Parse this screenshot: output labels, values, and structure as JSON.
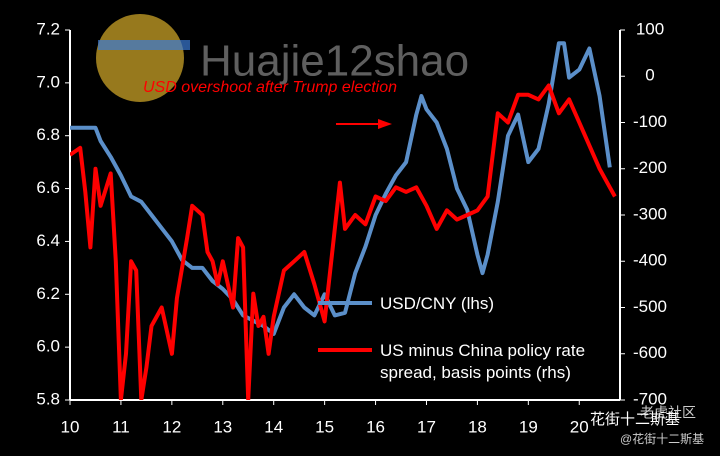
{
  "chart_data": {
    "type": "line",
    "annotation": "USD overshoot after Trump election",
    "watermarks": [
      "Huajie12shao",
      "老虎社区",
      "花街十二斯基",
      "@花街十二斯基"
    ],
    "xlim": [
      10,
      20.8
    ],
    "xticks": [
      10,
      11,
      12,
      13,
      14,
      15,
      16,
      17,
      18,
      19,
      20
    ],
    "ylim": [
      5.8,
      7.2
    ],
    "yticks": [
      5.8,
      {
        "value": 6,
        "label": "6.0"
      },
      6.2,
      6.4,
      6.6,
      6.8,
      {
        "value": 7,
        "label": "7.0"
      },
      7.2
    ],
    "y2lim": [
      -700,
      100
    ],
    "y2ticks": [
      -700,
      -600,
      -500,
      -400,
      -300,
      -200,
      -100,
      0,
      100
    ],
    "series": [
      {
        "name": "USD/CNY (lhs)",
        "color": "#5b8fc9",
        "x": [
          10,
          10.5,
          10.6,
          10.8,
          11,
          11.2,
          11.4,
          11.6,
          11.8,
          12,
          12.2,
          12.4,
          12.6,
          12.8,
          13,
          13.2,
          13.4,
          13.6,
          13.8,
          14,
          14.2,
          14.4,
          14.6,
          14.8,
          15,
          15.2,
          15.4,
          15.6,
          15.8,
          16,
          16.2,
          16.4,
          16.6,
          16.8,
          16.9,
          17,
          17.2,
          17.4,
          17.6,
          17.8,
          18,
          18.1,
          18.2,
          18.4,
          18.6,
          18.8,
          19,
          19.2,
          19.4,
          19.6,
          19.7,
          19.8,
          20,
          20.2,
          20.4,
          20.6
        ],
        "values": [
          6.83,
          6.83,
          6.78,
          6.72,
          6.65,
          6.57,
          6.55,
          6.5,
          6.45,
          6.4,
          6.33,
          6.3,
          6.3,
          6.25,
          6.22,
          6.18,
          6.12,
          6.1,
          6.08,
          6.05,
          6.15,
          6.2,
          6.15,
          6.12,
          6.2,
          6.12,
          6.13,
          6.28,
          6.38,
          6.5,
          6.58,
          6.65,
          6.7,
          6.88,
          6.95,
          6.9,
          6.85,
          6.75,
          6.6,
          6.52,
          6.35,
          6.28,
          6.35,
          6.55,
          6.8,
          6.88,
          6.7,
          6.75,
          6.92,
          7.15,
          7.15,
          7.02,
          7.05,
          7.13,
          6.95,
          6.68
        ]
      },
      {
        "name": "US minus China policy rate spread, basis points (rhs)",
        "color": "#ff0000",
        "axis": "y2",
        "x": [
          10,
          10.2,
          10.3,
          10.4,
          10.5,
          10.6,
          10.8,
          10.9,
          11,
          11.1,
          11.2,
          11.3,
          11.4,
          11.5,
          11.6,
          11.8,
          12,
          12.1,
          12.3,
          12.4,
          12.6,
          12.7,
          12.8,
          12.9,
          13,
          13.2,
          13.3,
          13.4,
          13.5,
          13.6,
          13.7,
          13.8,
          13.9,
          14,
          14.2,
          14.4,
          14.6,
          14.8,
          15,
          15.2,
          15.3,
          15.4,
          15.6,
          15.8,
          16,
          16.2,
          16.4,
          16.6,
          16.8,
          17,
          17.2,
          17.4,
          17.6,
          17.8,
          18,
          18.2,
          18.4,
          18.6,
          18.8,
          19,
          19.2,
          19.4,
          19.6,
          19.8,
          20,
          20.2,
          20.4,
          20.6,
          20.7
        ],
        "values": [
          -170,
          -155,
          -250,
          -370,
          -200,
          -280,
          -210,
          -400,
          -700,
          -600,
          -400,
          -420,
          -700,
          -630,
          -540,
          -500,
          -600,
          -480,
          -350,
          -280,
          -300,
          -380,
          -400,
          -450,
          -400,
          -500,
          -350,
          -370,
          -700,
          -470,
          -540,
          -520,
          -600,
          -520,
          -420,
          -400,
          -380,
          -450,
          -530,
          -330,
          -230,
          -330,
          -300,
          -320,
          -260,
          -270,
          -240,
          -250,
          -240,
          -280,
          -330,
          -290,
          -310,
          -300,
          -290,
          -260,
          -80,
          -100,
          -40,
          -40,
          -50,
          -20,
          -80,
          -50,
          -100,
          -150,
          -200,
          -240,
          -260
        ]
      }
    ]
  }
}
